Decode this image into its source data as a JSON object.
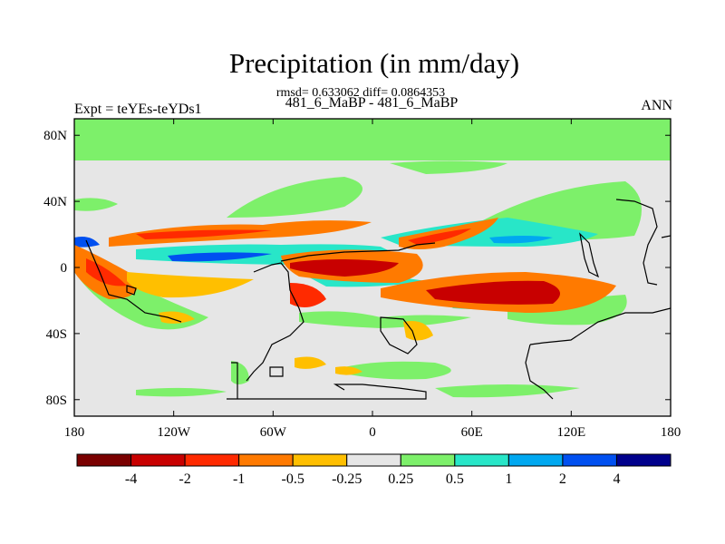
{
  "title": "Precipitation (in mm/day)",
  "stats_line": "rmsd= 0.633062 diff= 0.0864353",
  "case_line": "481_6_MaBP - 481_6_MaBP",
  "expt_label": "Expt = teYEs-teYDs1",
  "season_label": "ANN",
  "lat_ticks": [
    {
      "label": "80N",
      "value": 80
    },
    {
      "label": "40N",
      "value": 40
    },
    {
      "label": "0",
      "value": 0
    },
    {
      "label": "40S",
      "value": -40
    },
    {
      "label": "80S",
      "value": -80
    }
  ],
  "lon_ticks": [
    {
      "label": "180",
      "value": -180
    },
    {
      "label": "120W",
      "value": -120
    },
    {
      "label": "60W",
      "value": -60
    },
    {
      "label": "0",
      "value": 0
    },
    {
      "label": "60E",
      "value": 60
    },
    {
      "label": "120E",
      "value": 120
    },
    {
      "label": "180",
      "value": 180
    }
  ],
  "colorbar": {
    "colors": [
      "#7a0000",
      "#c80000",
      "#ff2a00",
      "#ff7a00",
      "#ffbf00",
      "#e6e6e6",
      "#7df06a",
      "#28e6c8",
      "#00a8f0",
      "#0050f0",
      "#00008c"
    ],
    "labels": [
      "-4",
      "-2",
      "-1",
      "-0.5",
      "-0.25",
      "0.25",
      "0.5",
      "1",
      "2",
      "4"
    ]
  },
  "colors": {
    "background_field": "#e6e6e6",
    "coastline": "#000000"
  }
}
